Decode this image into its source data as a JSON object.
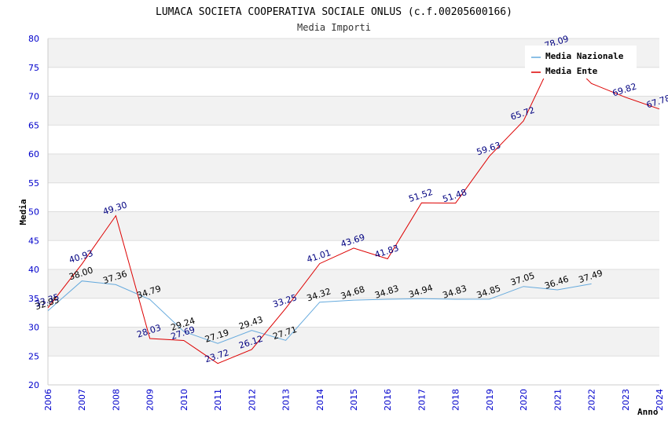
{
  "chart_data": {
    "type": "line",
    "title": "LUMACA SOCIETA COOPERATIVA SOCIALE ONLUS (c.f.00205600166)",
    "subtitle": "Media Importi",
    "xlabel": "Anno",
    "ylabel": "Media",
    "ylim": [
      20,
      80
    ],
    "yticks": [
      "20",
      "25",
      "30",
      "35",
      "40",
      "45",
      "50",
      "55",
      "60",
      "65",
      "70",
      "75",
      "80"
    ],
    "x": [
      "2006",
      "2007",
      "2008",
      "2009",
      "2010",
      "2011",
      "2012",
      "2013",
      "2014",
      "2015",
      "2016",
      "2017",
      "2018",
      "2019",
      "2020",
      "2021",
      "2022",
      "2023",
      "2024"
    ],
    "grid": true,
    "legend_position": "top-right",
    "series": [
      {
        "name": "Media Nazionale",
        "color": "#66aadd",
        "label_color": "#000000",
        "values": [
          32.85,
          38.0,
          37.36,
          34.79,
          29.24,
          27.19,
          29.43,
          27.71,
          34.32,
          34.68,
          34.83,
          34.94,
          34.83,
          34.85,
          37.05,
          36.46,
          37.49,
          null,
          null
        ],
        "labels": [
          "32.85",
          "38.00",
          "37.36",
          "34.79",
          "29.24",
          "27.19",
          "29.43",
          "27.71",
          "34.32",
          "34.68",
          "34.83",
          "34.94",
          "34.83",
          "34.85",
          "37.05",
          "36.46",
          "37.49",
          "",
          ""
        ]
      },
      {
        "name": "Media Ente",
        "color": "#dd0000",
        "label_color": "#000080",
        "values": [
          33.35,
          40.93,
          49.3,
          28.03,
          27.69,
          23.72,
          26.12,
          33.25,
          41.01,
          43.69,
          41.83,
          51.52,
          51.48,
          59.63,
          65.72,
          78.09,
          72.2,
          69.82,
          67.78
        ],
        "labels": [
          "33.35",
          "40.93",
          "49.30",
          "28.03",
          "27.69",
          "23.72",
          "26.12",
          "33.25",
          "41.01",
          "43.69",
          "41.83",
          "51.52",
          "51.48",
          "59.63",
          "65.72",
          "78.09",
          "",
          "69.82",
          "67.78"
        ]
      }
    ]
  }
}
